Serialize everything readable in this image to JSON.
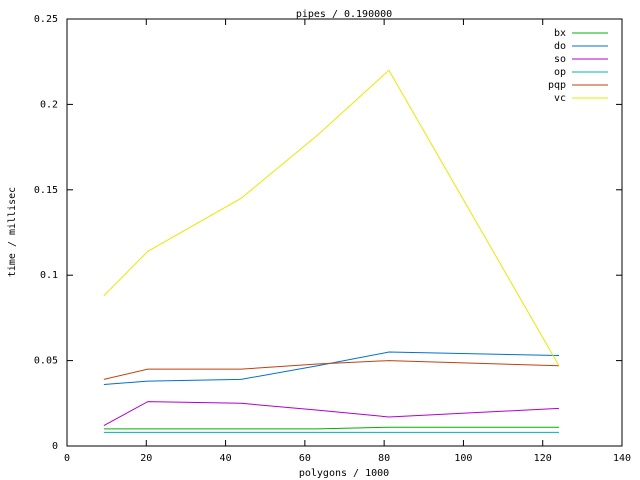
{
  "chart_data": {
    "type": "line",
    "title": "pipes / 0.190000",
    "xlabel": "polygons / 1000",
    "ylabel": "time / millisec",
    "x": [
      9.3,
      20.4,
      43.9,
      63.2,
      81.2,
      124.1
    ],
    "series": [
      {
        "name": "bx",
        "color": "#00b000",
        "values": [
          0.01,
          0.01,
          0.01,
          0.01,
          0.011,
          0.011
        ]
      },
      {
        "name": "do",
        "color": "#0070d0",
        "values": [
          0.036,
          0.038,
          0.039,
          0.047,
          0.055,
          0.053
        ]
      },
      {
        "name": "so",
        "color": "#b000d0",
        "values": [
          0.012,
          0.026,
          0.025,
          0.021,
          0.017,
          0.022
        ]
      },
      {
        "name": "op",
        "color": "#00b0b0",
        "values": [
          0.008,
          0.008,
          0.008,
          0.008,
          0.008,
          0.008
        ]
      },
      {
        "name": "pqp",
        "color": "#c04010",
        "values": [
          0.039,
          0.045,
          0.045,
          0.048,
          0.05,
          0.047
        ]
      },
      {
        "name": "vc",
        "color": "#e8e800",
        "values": [
          0.088,
          0.114,
          0.145,
          0.182,
          0.22,
          0.047
        ]
      }
    ],
    "xlim": [
      0,
      140
    ],
    "xticks": [
      0,
      20,
      40,
      60,
      80,
      100,
      120,
      140
    ],
    "ylim": [
      0,
      0.25
    ],
    "yticks": [
      0,
      0.05,
      0.1,
      0.15,
      0.2,
      0.25
    ],
    "grid": false,
    "legend": "top-right"
  }
}
